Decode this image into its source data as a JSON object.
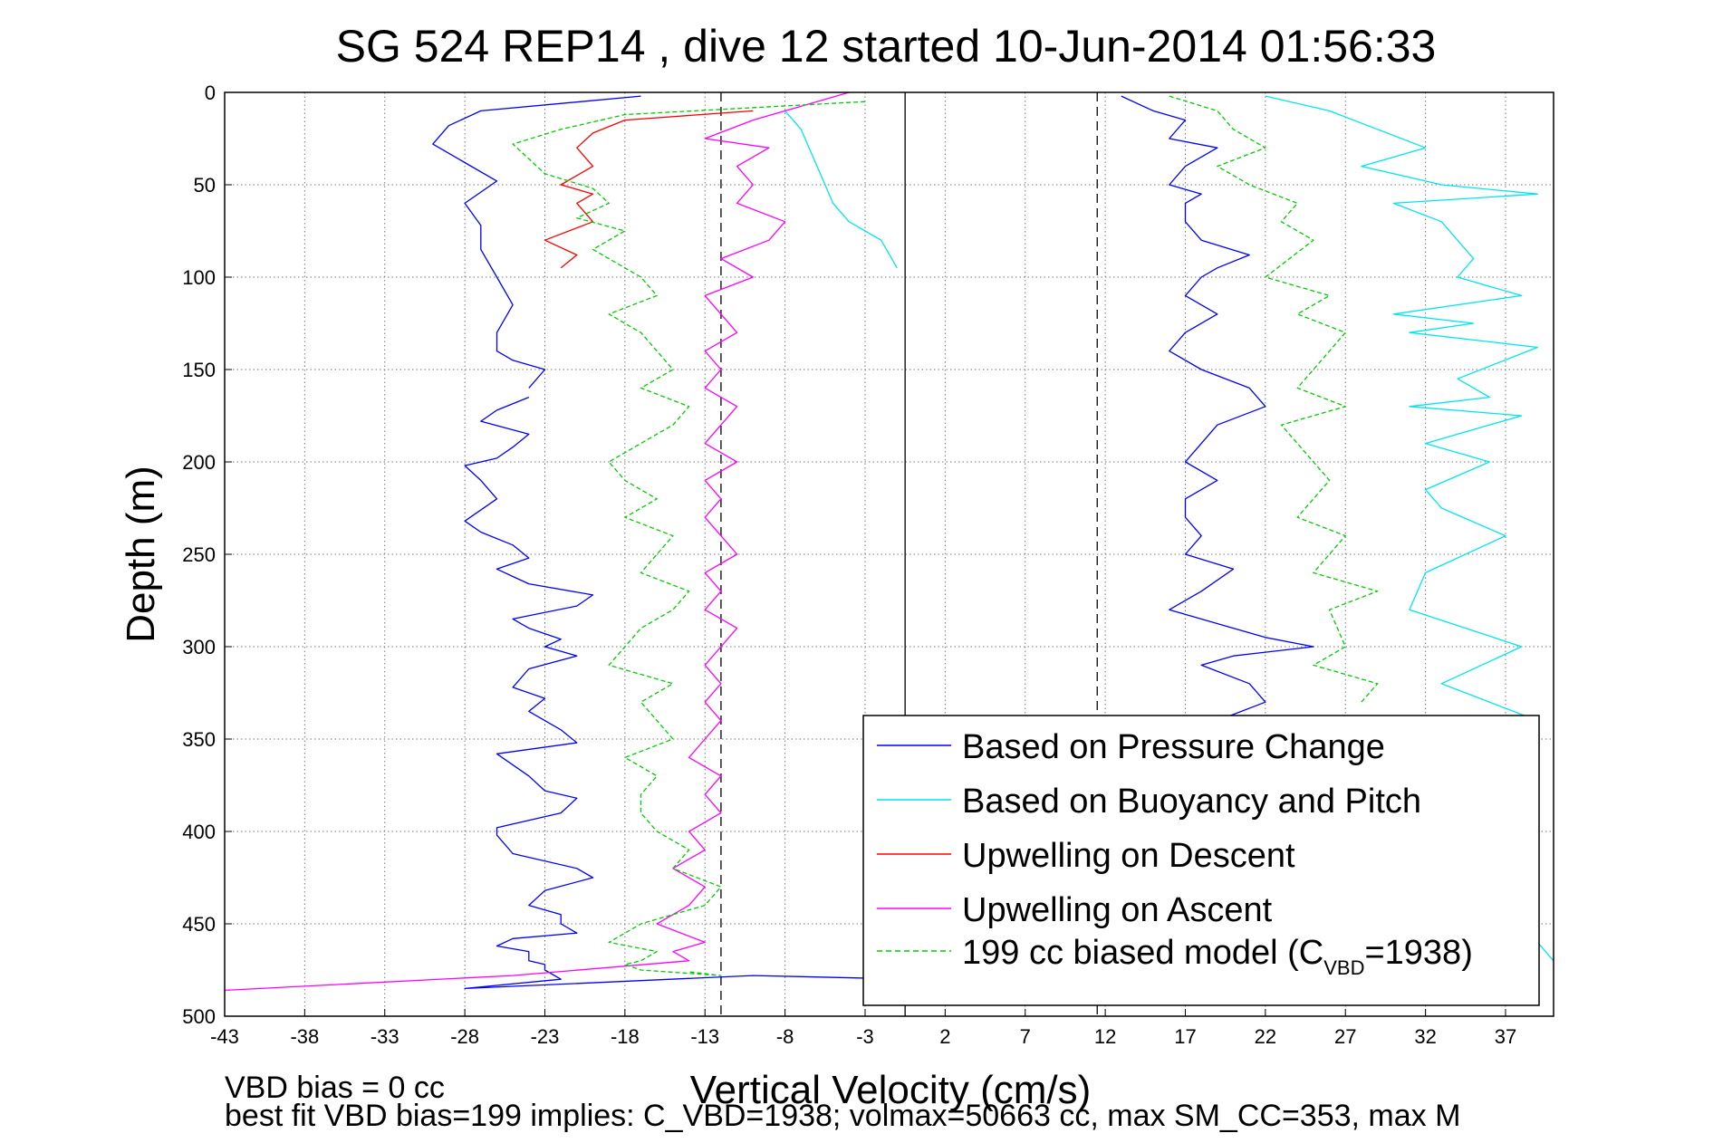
{
  "chart_data": {
    "type": "line",
    "title": "SG 524   REP14  , dive 12 started 10-Jun-2014 01:56:33",
    "xlabel": "Vertical Velocity (cm/s)",
    "ylabel": "Depth (m)",
    "xlim": [
      -43,
      40
    ],
    "ylim": [
      0,
      500
    ],
    "y_reversed": true,
    "grid": true,
    "x_ticks": [
      -43,
      -38,
      -33,
      -28,
      -23,
      -18,
      -13,
      -8,
      -3,
      2,
      7,
      12,
      17,
      22,
      27,
      32,
      37
    ],
    "y_ticks": [
      0,
      50,
      100,
      150,
      200,
      250,
      300,
      350,
      400,
      450,
      500
    ],
    "reference_lines": [
      {
        "x": -0.5,
        "style": "solid"
      },
      {
        "x": -12,
        "style": "dashed"
      },
      {
        "x": 11.5,
        "style": "dashed"
      }
    ],
    "legend_location": "bottom-right",
    "legend_title": "",
    "series": [
      {
        "name": "Based on Pressure Change",
        "color": "#0000ff",
        "style": "solid",
        "segments": [
          {
            "x": [
              -17,
              -27,
              -29,
              -30,
              -28,
              -26,
              -28,
              -27,
              -27,
              -26,
              -25,
              -26,
              -26,
              -25,
              -23,
              -24
            ],
            "y": [
              2,
              10,
              18,
              28,
              38,
              48,
              60,
              72,
              85,
              100,
              115,
              130,
              140,
              145,
              150,
              160
            ]
          },
          {
            "x": [
              -24,
              -26,
              -27,
              -24,
              -25,
              -26,
              -28,
              -27,
              -26,
              -28,
              -27,
              -25,
              -24,
              -26,
              -25,
              -24,
              -20,
              -21,
              -25,
              -24,
              -22,
              -23,
              -21,
              -24,
              -25,
              -23,
              -24,
              -22,
              -21,
              -26,
              -24,
              -23,
              -21,
              -22,
              -26,
              -26,
              -25,
              -21,
              -20,
              -23,
              -24,
              -22,
              -22,
              -21,
              -25,
              -26,
              -24,
              -24,
              -23,
              -23,
              -22,
              -28,
              -10,
              0
            ],
            "y": [
              165,
              172,
              178,
              185,
              192,
              198,
              202,
              210,
              220,
              232,
              238,
              245,
              252,
              258,
              262,
              266,
              272,
              278,
              285,
              290,
              296,
              300,
              305,
              312,
              322,
              328,
              335,
              345,
              352,
              358,
              370,
              378,
              382,
              390,
              398,
              402,
              412,
              420,
              425,
              432,
              440,
              445,
              450,
              455,
              458,
              462,
              465,
              470,
              472,
              475,
              480,
              485,
              478,
              480
            ]
          },
          {
            "x": [
              13,
              15,
              17,
              16,
              19,
              17,
              16,
              18,
              17,
              17,
              18,
              21,
              19,
              18,
              17,
              19,
              17,
              16,
              18,
              21,
              22,
              19,
              18,
              17,
              19,
              17,
              17,
              18,
              17,
              20,
              18,
              16,
              20,
              22,
              25,
              20,
              18,
              21,
              22,
              19,
              21,
              20,
              18,
              19,
              20,
              22,
              19,
              20,
              18
            ],
            "y": [
              2,
              10,
              15,
              25,
              30,
              40,
              50,
              55,
              60,
              70,
              80,
              88,
              95,
              100,
              110,
              120,
              130,
              140,
              150,
              160,
              170,
              180,
              190,
              200,
              210,
              220,
              230,
              240,
              250,
              258,
              270,
              280,
              290,
              295,
              300,
              305,
              310,
              320,
              330,
              340,
              350,
              360,
              370,
              380,
              400,
              420,
              440,
              460,
              480
            ]
          }
        ]
      },
      {
        "name": "Based on Buoyancy and Pitch",
        "color": "#00e5ee",
        "style": "solid",
        "segments": [
          {
            "x": [
              -8,
              -7,
              -6,
              -5,
              -4,
              -2,
              -1
            ],
            "y": [
              10,
              20,
              40,
              60,
              70,
              80,
              95
            ]
          },
          {
            "x": [
              22,
              26,
              29,
              32,
              28,
              33,
              39,
              30,
              33,
              35,
              34,
              38,
              30,
              35,
              31,
              39,
              34,
              36,
              31,
              38,
              32,
              36,
              32,
              33,
              37,
              32,
              31,
              38,
              33,
              39,
              35,
              33,
              37,
              40
            ],
            "y": [
              2,
              10,
              20,
              30,
              40,
              50,
              55,
              60,
              70,
              90,
              100,
              110,
              120,
              125,
              130,
              138,
              155,
              165,
              170,
              175,
              190,
              200,
              215,
              225,
              240,
              260,
              280,
              300,
              320,
              340,
              380,
              420,
              440,
              470
            ]
          }
        ]
      },
      {
        "name": "Upwelling on Descent",
        "color": "#ff0000",
        "style": "solid",
        "segments": [
          {
            "x": [
              -10,
              -18,
              -20,
              -21,
              -20,
              -22,
              -20,
              -21,
              -20,
              -23,
              -21,
              -22
            ],
            "y": [
              10,
              15,
              22,
              30,
              40,
              50,
              55,
              60,
              70,
              80,
              88,
              95
            ]
          }
        ]
      },
      {
        "name": "Upwelling on Ascent",
        "color": "#ff00ff",
        "style": "solid",
        "segments": [
          {
            "x": [
              -4,
              -6,
              -10,
              -13,
              -9,
              -11,
              -10,
              -11,
              -8,
              -9,
              -12,
              -10,
              -13,
              -12,
              -11,
              -13,
              -12,
              -13,
              -11,
              -12,
              -13,
              -11,
              -13,
              -12,
              -13,
              -12,
              -11,
              -13,
              -12,
              -13,
              -11,
              -12,
              -13,
              -12,
              -13,
              -12,
              -13,
              -14,
              -12,
              -13,
              -12,
              -14,
              -13,
              -15,
              -13,
              -14,
              -16,
              -13,
              -15,
              -14,
              -25,
              -43
            ],
            "y": [
              0,
              5,
              15,
              25,
              30,
              40,
              50,
              60,
              70,
              80,
              90,
              100,
              110,
              120,
              130,
              140,
              150,
              160,
              170,
              180,
              190,
              200,
              210,
              220,
              230,
              240,
              250,
              260,
              270,
              280,
              290,
              300,
              310,
              320,
              330,
              340,
              350,
              360,
              370,
              380,
              390,
              400,
              410,
              420,
              430,
              440,
              450,
              460,
              465,
              470,
              478,
              486
            ]
          }
        ]
      },
      {
        "name": "199 cc biased model (C",
        "color": "#00cc00",
        "style": "dashed",
        "segments": [
          {
            "x": [
              -3,
              -18,
              -22,
              -25,
              -24,
              -23,
              -20,
              -19,
              -21,
              -18,
              -20,
              -17,
              -16,
              -19,
              -17,
              -16,
              -15,
              -17,
              -14,
              -15,
              -17,
              -19,
              -18,
              -16,
              -18,
              -15,
              -16,
              -17,
              -14,
              -15,
              -17,
              -18,
              -19,
              -15,
              -17,
              -16,
              -15,
              -18,
              -16,
              -17,
              -17,
              -16,
              -14,
              -15,
              -12,
              -13,
              -17,
              -18,
              -19,
              -16,
              -17,
              -18,
              -17,
              -12,
              -14
            ],
            "y": [
              5,
              12,
              20,
              28,
              36,
              44,
              52,
              60,
              68,
              75,
              85,
              100,
              110,
              120,
              130,
              140,
              150,
              160,
              170,
              180,
              190,
              200,
              210,
              220,
              230,
              240,
              250,
              260,
              270,
              280,
              290,
              300,
              310,
              320,
              330,
              340,
              350,
              360,
              370,
              380,
              390,
              400,
              410,
              420,
              430,
              440,
              450,
              455,
              460,
              465,
              470,
              472,
              475,
              478,
              476
            ]
          },
          {
            "x": [
              16,
              19,
              20,
              22,
              19,
              21,
              24,
              23,
              25,
              22,
              26,
              24,
              27,
              26,
              24,
              27,
              23,
              25,
              26,
              24,
              27,
              25,
              29,
              26,
              27,
              25,
              29,
              28
            ],
            "y": [
              2,
              10,
              20,
              30,
              40,
              50,
              60,
              70,
              80,
              100,
              110,
              120,
              130,
              140,
              160,
              170,
              180,
              200,
              210,
              230,
              240,
              260,
              270,
              280,
              300,
              310,
              320,
              330
            ]
          }
        ]
      }
    ]
  },
  "legend": {
    "items": [
      {
        "label": "Based on Pressure Change",
        "color": "#0000ff"
      },
      {
        "label": "Based on Buoyancy and Pitch",
        "color": "#00e5ee"
      },
      {
        "label": "Upwelling on Descent",
        "color": "#ff0000"
      },
      {
        "label": "Upwelling on Ascent",
        "color": "#ff00ff"
      },
      {
        "label": "199 cc biased model (C",
        "color": "#00cc00",
        "sub": "VBD",
        "suffix": "=1938)"
      }
    ]
  },
  "notes": {
    "line1": "VBD bias = 0 cc",
    "line2": "best fit VBD bias=199 implies: C_VBD=1938; volmax=50663 cc, max SM_CC=353, max M"
  }
}
